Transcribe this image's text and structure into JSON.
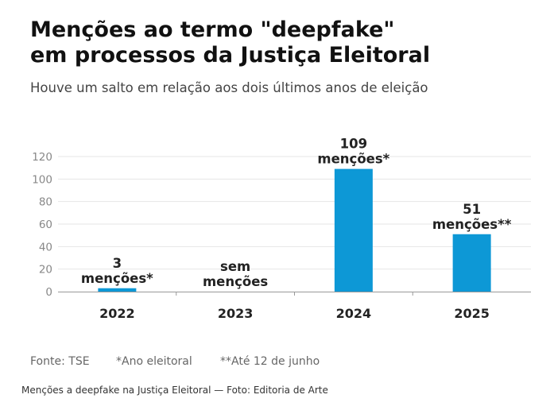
{
  "title_lines": [
    "Menções ao termo \"deepfake\"",
    "em processos da Justiça Eleitoral"
  ],
  "subtitle": "Houve um salto em relação aos dois últimos anos de eleição",
  "bar_color": "#0d98d6",
  "chart_data": {
    "type": "bar",
    "categories": [
      "2022",
      "2023",
      "2024",
      "2025"
    ],
    "values": [
      3,
      0,
      109,
      51
    ],
    "data_labels": [
      [
        "3",
        "menções*"
      ],
      [
        "sem",
        "menções"
      ],
      [
        "109",
        "menções*"
      ],
      [
        "51",
        "menções**"
      ]
    ],
    "y_ticks": [
      0,
      20,
      40,
      60,
      80,
      100,
      120
    ],
    "ylim": [
      0,
      120
    ],
    "grid": true,
    "legend": "none"
  },
  "footnotes": [
    "Fonte: TSE",
    "*Ano eleitoral",
    "**Até 12 de junho"
  ],
  "caption": "Menções a deepfake na Justiça Eleitoral — Foto: Editoria de Arte"
}
